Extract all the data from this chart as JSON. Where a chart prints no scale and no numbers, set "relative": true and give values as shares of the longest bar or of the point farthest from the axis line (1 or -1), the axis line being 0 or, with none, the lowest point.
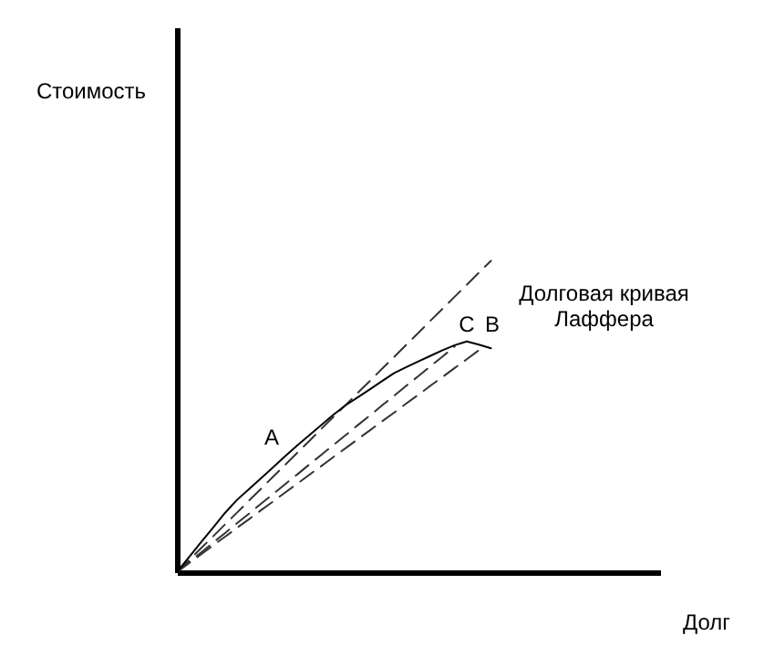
{
  "chart_data": {
    "type": "line",
    "relative": true,
    "xlabel": "Долг",
    "marker": "none",
    "categories": [
      null,
      null,
      null,
      null,
      null,
      null,
      null,
      null,
      null,
      null,
      null,
      null,
      null,
      null,
      null,
      null,
      null,
      null,
      null,
      null,
      null,
      null,
      null,
      null,
      null,
      null,
      null,
      null,
      null,
      null,
      null,
      null,
      null,
      null,
      null,
      null,
      null,
      null,
      null,
      null,
      null
    ],
    "series": [
      {
        "values": [
          0,
          0.038,
          0.077,
          0.115,
          0.154,
          0.192,
          0.231,
          0.269,
          0.308,
          0.346,
          0.385,
          0.423,
          0.462,
          0.5,
          0.538,
          0.577,
          0.615,
          0.654,
          0.692,
          0.731,
          0.769,
          0.808,
          0.846,
          0.885,
          0.923,
          0.962,
          1,
          null,
          null,
          null,
          null,
          null,
          null,
          null,
          null,
          null,
          null,
          null,
          null,
          null,
          null
        ],
        "color": "#333333",
        "line_style": "dashed"
      },
      {
        "values": [
          0,
          0.032,
          0.063,
          0.095,
          0.126,
          0.158,
          0.189,
          0.221,
          0.252,
          0.284,
          0.315,
          0.347,
          0.378,
          0.41,
          0.441,
          0.473,
          0.504,
          0.536,
          0.567,
          0.599,
          0.63,
          0.662,
          0.693,
          0.725,
          null,
          null,
          null,
          null,
          null,
          null,
          null,
          null,
          null,
          null,
          null,
          null,
          null,
          null,
          null,
          null,
          null
        ],
        "color": "#333333",
        "line_style": "dashed"
      },
      {
        "values": [
          0,
          0.029,
          0.057,
          0.086,
          0.114,
          0.143,
          0.171,
          0.2,
          0.228,
          0.257,
          0.285,
          0.314,
          0.342,
          0.371,
          0.399,
          0.428,
          0.456,
          0.485,
          0.513,
          0.542,
          0.57,
          0.599,
          0.627,
          0.656,
          0.684,
          0.713,
          null,
          null,
          null,
          null,
          null,
          null,
          null,
          null,
          null,
          null,
          null,
          null,
          null,
          null,
          null
        ],
        "color": "#333333",
        "line_style": "dashed"
      },
      {
        "name": "Долговая кривая Лаффера",
        "values": [
          0,
          0.048,
          0.096,
          0.143,
          0.191,
          0.233,
          0.268,
          0.303,
          0.338,
          0.374,
          0.408,
          0.441,
          0.474,
          0.507,
          0.537,
          0.562,
          0.588,
          0.614,
          0.64,
          0.659,
          0.677,
          0.695,
          0.713,
          0.729,
          0.741,
          0.731,
          0.719,
          null,
          null,
          null,
          null,
          null,
          null,
          null,
          null,
          null,
          null,
          null,
          null,
          null,
          null
        ],
        "color": "#000000",
        "line_style": "solid"
      }
    ],
    "annotations": [
      "Стоимость",
      "A",
      "C",
      "B"
    ]
  }
}
